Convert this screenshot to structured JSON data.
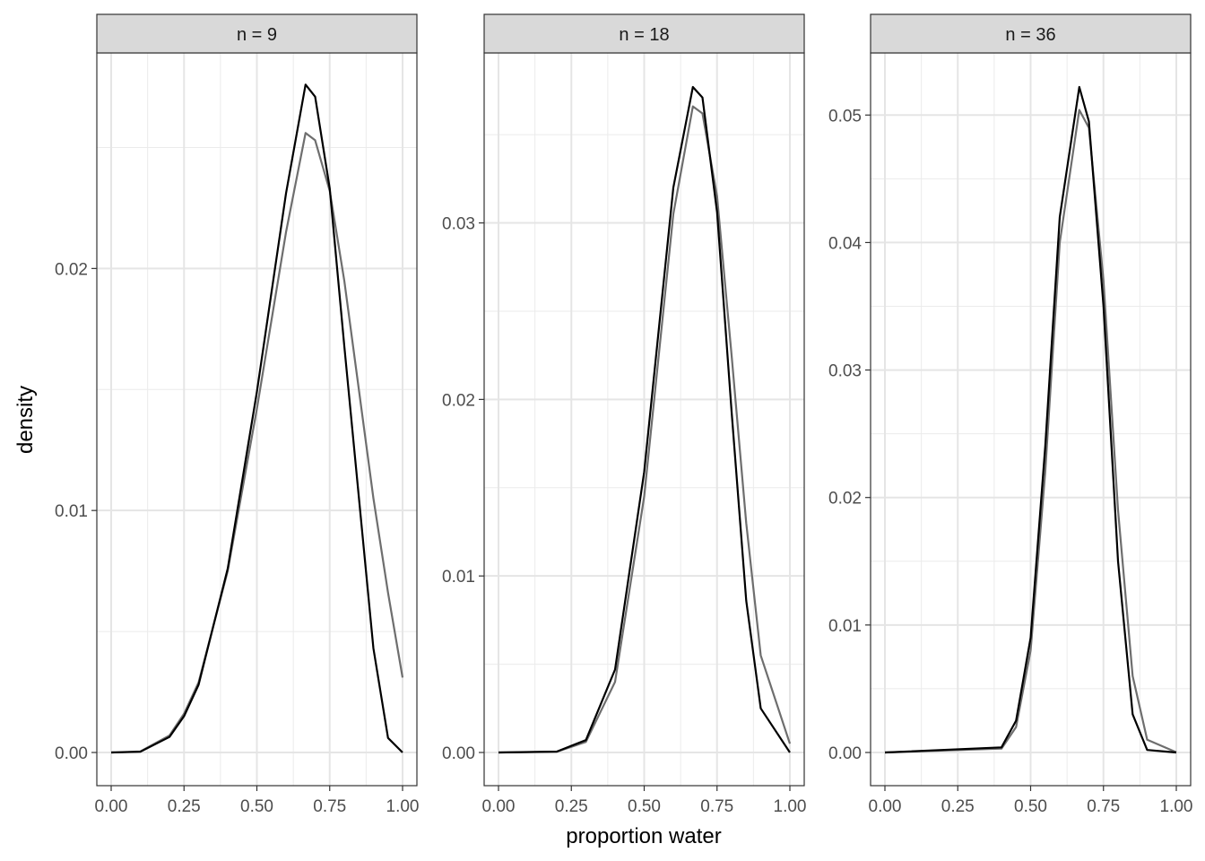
{
  "chart_data": {
    "type": "line",
    "xlabel": "proportion water",
    "ylabel": "density",
    "facets": [
      {
        "strip": "n = 9",
        "n": 9,
        "xlim": [
          0,
          1
        ],
        "xticks": [
          "0.00",
          "0.25",
          "0.50",
          "0.75",
          "1.00"
        ],
        "ylim": [
          0,
          0.0275
        ],
        "yticks": [
          "0.00",
          "0.01",
          "0.02"
        ],
        "series": [
          {
            "color": "#000000",
            "x": [
              0,
              0.1,
              0.2,
              0.25,
              0.3,
              0.4,
              0.5,
              0.6,
              0.667,
              0.7,
              0.75,
              0.8,
              0.9,
              0.95,
              1.0
            ],
            "y": [
              0,
              3e-05,
              0.00064,
              0.0015,
              0.0028,
              0.0076,
              0.0149,
              0.0231,
              0.0276,
              0.0271,
              0.0233,
              0.0168,
              0.0043,
              0.0006,
              0
            ]
          },
          {
            "color": "#6e6e6e",
            "x": [
              0,
              0.1,
              0.2,
              0.25,
              0.3,
              0.4,
              0.5,
              0.6,
              0.667,
              0.7,
              0.75,
              0.8,
              0.9,
              0.95,
              1.0
            ],
            "y": [
              0,
              4e-05,
              0.0007,
              0.0016,
              0.0029,
              0.0075,
              0.0142,
              0.0215,
              0.0256,
              0.0253,
              0.0232,
              0.0195,
              0.0105,
              0.0066,
              0.0031
            ]
          }
        ]
      },
      {
        "strip": "n = 18",
        "n": 18,
        "xlim": [
          0,
          1
        ],
        "xticks": [
          "0.00",
          "0.25",
          "0.50",
          "0.75",
          "1.00"
        ],
        "ylim": [
          0,
          0.0377
        ],
        "yticks": [
          "0.00",
          "0.01",
          "0.02",
          "0.03"
        ],
        "series": [
          {
            "color": "#000000",
            "x": [
              0,
              0.2,
              0.3,
              0.4,
              0.5,
              0.6,
              0.667,
              0.7,
              0.75,
              0.8,
              0.85,
              0.9,
              1.0
            ],
            "y": [
              0,
              5e-05,
              0.0007,
              0.0047,
              0.0159,
              0.032,
              0.0377,
              0.0371,
              0.0306,
              0.0193,
              0.0086,
              0.0025,
              0
            ]
          },
          {
            "color": "#6e6e6e",
            "x": [
              0,
              0.2,
              0.3,
              0.4,
              0.5,
              0.6,
              0.667,
              0.7,
              0.75,
              0.8,
              0.85,
              0.9,
              1.0
            ],
            "y": [
              0,
              4e-05,
              0.0006,
              0.004,
              0.0145,
              0.0305,
              0.0366,
              0.0362,
              0.0315,
              0.0225,
              0.013,
              0.0055,
              0.0005
            ]
          }
        ]
      },
      {
        "strip": "n = 36",
        "n": 36,
        "xlim": [
          0,
          1
        ],
        "xticks": [
          "0.00",
          "0.25",
          "0.50",
          "0.75",
          "1.00"
        ],
        "ylim": [
          0,
          0.0522
        ],
        "yticks": [
          "0.00",
          "0.01",
          "0.02",
          "0.03",
          "0.04",
          "0.05"
        ],
        "series": [
          {
            "color": "#000000",
            "x": [
              0,
              0.4,
              0.45,
              0.5,
              0.55,
              0.6,
              0.667,
              0.7,
              0.75,
              0.8,
              0.85,
              0.9,
              1.0
            ],
            "y": [
              0,
              0.0004,
              0.0025,
              0.009,
              0.024,
              0.042,
              0.0522,
              0.0495,
              0.035,
              0.015,
              0.003,
              0.0002,
              0
            ]
          },
          {
            "color": "#6e6e6e",
            "x": [
              0,
              0.4,
              0.45,
              0.5,
              0.55,
              0.6,
              0.667,
              0.7,
              0.75,
              0.8,
              0.85,
              0.9,
              1.0
            ],
            "y": [
              0,
              0.0003,
              0.002,
              0.008,
              0.022,
              0.04,
              0.0504,
              0.049,
              0.037,
              0.019,
              0.006,
              0.001,
              2e-05
            ]
          }
        ]
      }
    ]
  }
}
